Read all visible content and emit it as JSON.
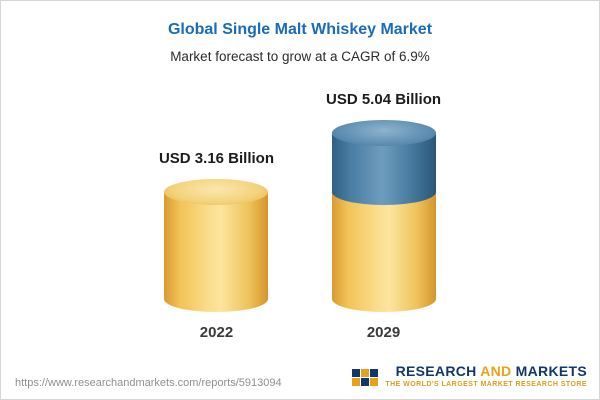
{
  "chart": {
    "title": "Global Single Malt Whiskey Market",
    "subtitle": "Market forecast to grow at a CAGR of 6.9%"
  },
  "chart_data": {
    "type": "bar",
    "categories": [
      "2022",
      "2029"
    ],
    "values": [
      3.16,
      5.04
    ],
    "value_labels": [
      "USD 3.16 Billion",
      "USD 5.04 Billion"
    ],
    "title": "Global Single Malt Whiskey Market",
    "subtitle": "Market forecast to grow at a CAGR of 6.9%",
    "unit": "USD Billion",
    "cagr": "6.9%",
    "legend_position": "none",
    "grid": false,
    "colors": {
      "bar_2022": "#f3cd6e",
      "bar_2029_base": "#f3cd6e",
      "bar_2029_growth": "#4d7fa8"
    }
  },
  "footer": {
    "url": "https://www.researchandmarkets.com/reports/5913094",
    "logo_word_1": "RESEARCH",
    "logo_word_2": "AND",
    "logo_word_3": "MARKETS",
    "tagline": "THE WORLD'S LARGEST MARKET RESEARCH STORE"
  }
}
